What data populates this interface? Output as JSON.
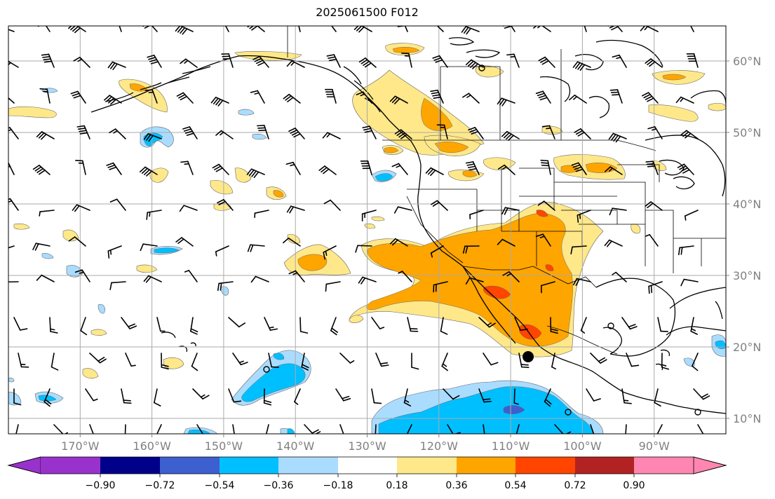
{
  "title": "2025061500 F012",
  "map": {
    "lat_labels": [
      "60°N",
      "50°N",
      "40°N",
      "30°N",
      "20°N",
      "10°N"
    ],
    "lon_labels": [
      "170°W",
      "160°W",
      "150°W",
      "140°W",
      "130°W",
      "120°W",
      "110°W",
      "100°W",
      "90°W"
    ],
    "lon_range": [
      -180,
      -80
    ],
    "lat_range": [
      8,
      65
    ],
    "gridlines": true
  },
  "colorbar": {
    "ticks": [
      "−0.90",
      "−0.72",
      "−0.54",
      "−0.36",
      "−0.18",
      "0.18",
      "0.36",
      "0.54",
      "0.72",
      "0.90"
    ],
    "colors": [
      "#9932cc",
      "#00008b",
      "#3d5fd0",
      "#00bfff",
      "#aadcff",
      "#ffffff",
      "#ffe88a",
      "#ffa500",
      "#ff4500",
      "#b22222",
      "#ff86b0"
    ],
    "extend": "both"
  },
  "colors": {
    "light_yellow": "#ffe88a",
    "orange": "#ffa500",
    "red_orange": "#ff4500",
    "light_blue": "#aadcff",
    "deep_sky_blue": "#00bfff",
    "royal_blue": "#3d5fd0"
  }
}
